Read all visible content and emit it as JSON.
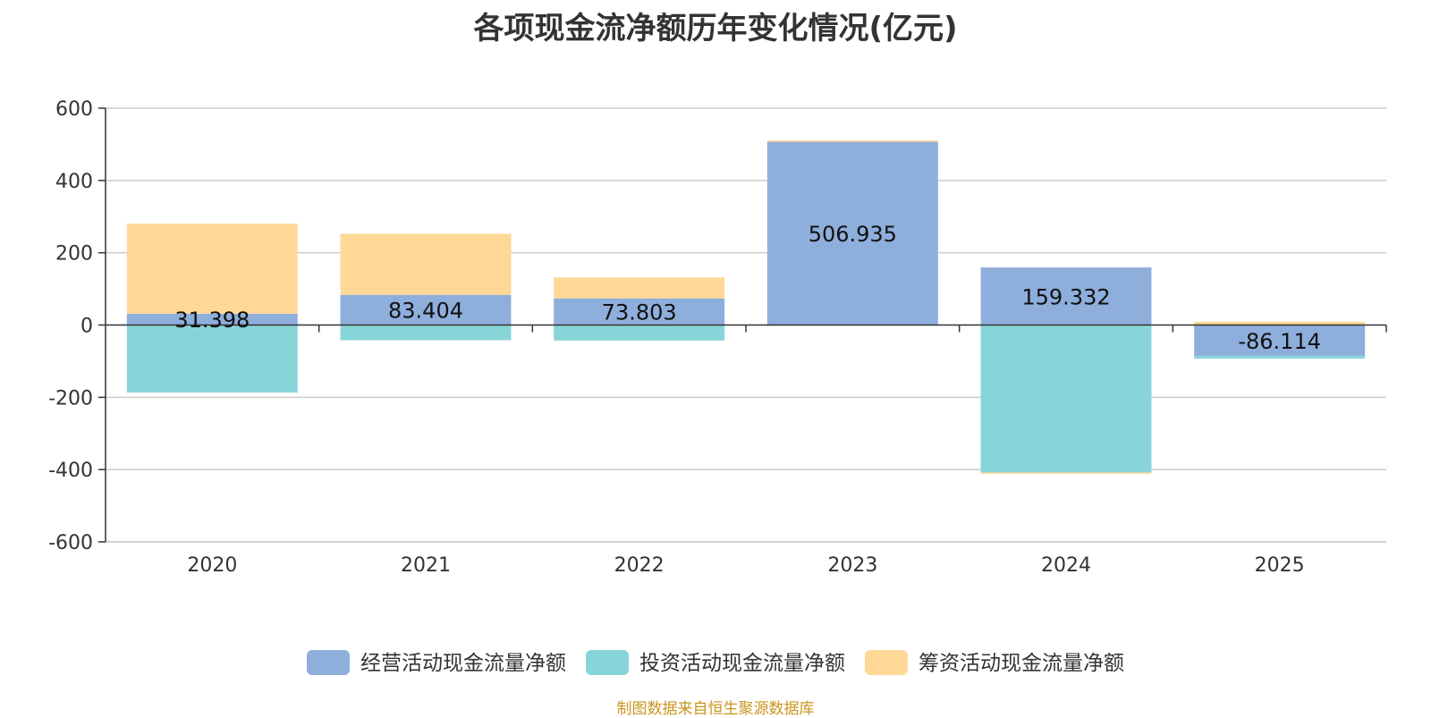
{
  "chart_data": {
    "type": "bar",
    "stacked": true,
    "title": "各项现金流净额历年变化情况(亿元)",
    "categories": [
      "2020",
      "2021",
      "2022",
      "2023",
      "2024",
      "2025"
    ],
    "ylim": [
      -600,
      600
    ],
    "yticks": [
      "600",
      "400",
      "200",
      "0",
      "-200",
      "-400",
      "-600"
    ],
    "grid": true,
    "legend_position": "bottom",
    "series": [
      {
        "name": "经营活动现金流量净额",
        "color": "#8eaedc",
        "values": [
          31.398,
          83.404,
          73.803,
          506.935,
          159.332,
          -86.114
        ],
        "labels": [
          "31.398",
          "83.404",
          "73.803",
          "506.935",
          "159.332",
          "-86.114"
        ]
      },
      {
        "name": "投资活动现金流量净额",
        "color": "#87d5d9",
        "values": [
          -187,
          -42,
          -43,
          0,
          -408,
          -7
        ]
      },
      {
        "name": "筹资活动现金流量净额",
        "color": "#ffd898",
        "values": [
          249,
          169,
          58,
          4,
          -4,
          9
        ]
      }
    ]
  },
  "footer": {
    "source": "制图数据来自恒生聚源数据库"
  }
}
